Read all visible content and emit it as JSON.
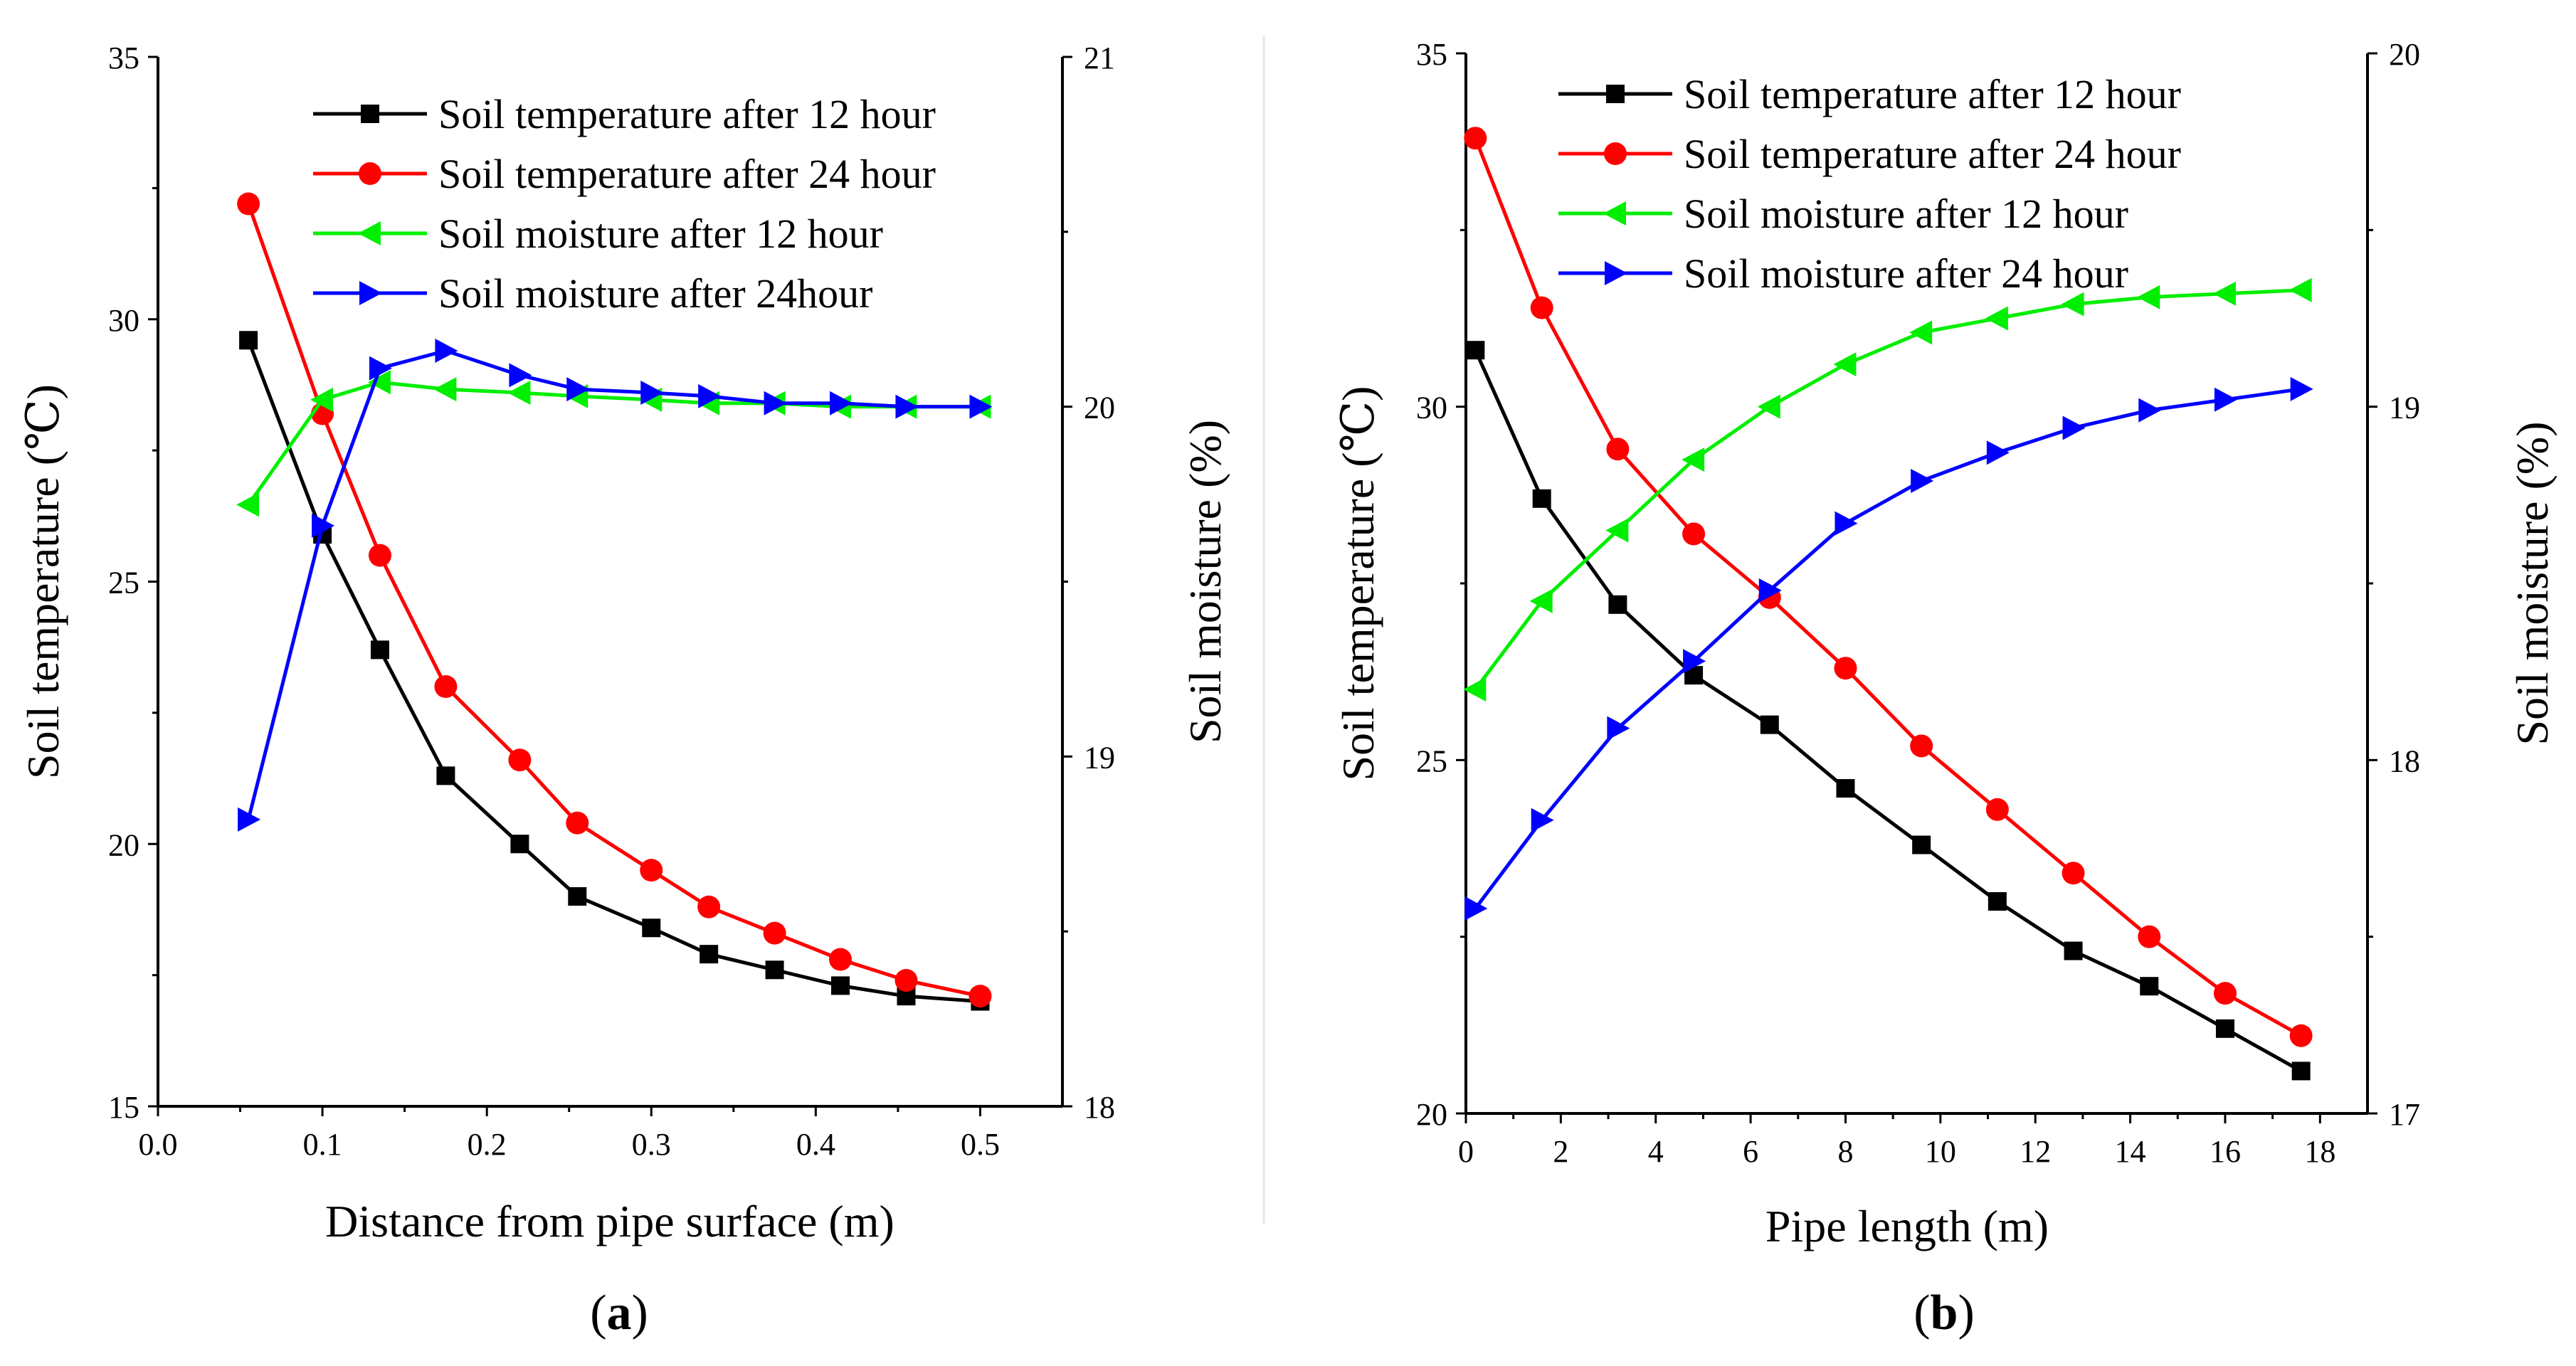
{
  "panels_caption": [
    {
      "open": "(",
      "letter": "a",
      "close": ")"
    },
    {
      "open": "(",
      "letter": "b",
      "close": ")"
    }
  ],
  "colors": {
    "temp12": "#000000",
    "temp24": "#ff0000",
    "moist12": "#00ee00",
    "moist24": "#0000ff"
  },
  "chart_data": [
    {
      "type": "line",
      "xlabel": "Distance from pipe surface (m)",
      "ylabel": "Soil temperature (℃)",
      "y2label": "Soil moisture (%)",
      "xlim": [
        0.0,
        0.55
      ],
      "ylim": [
        15,
        35
      ],
      "y2lim": [
        18,
        21
      ],
      "xticks": [
        "0.0",
        "0.1",
        "0.2",
        "0.3",
        "0.4",
        "0.5"
      ],
      "yticks": [
        "15",
        "20",
        "25",
        "30",
        "35"
      ],
      "y2ticks": [
        "18",
        "19",
        "20",
        "21"
      ],
      "legend_position": "top-right",
      "series": [
        {
          "name": "Soil temperature after 12 hour",
          "axis": "left",
          "marker": "square",
          "color": "#000000",
          "x": [
            0.055,
            0.1,
            0.135,
            0.175,
            0.22,
            0.255,
            0.3,
            0.335,
            0.375,
            0.415,
            0.455,
            0.5
          ],
          "y": [
            29.6,
            25.9,
            23.7,
            21.3,
            20.0,
            19.0,
            18.4,
            17.9,
            17.6,
            17.3,
            17.1,
            17.0
          ]
        },
        {
          "name": "Soil temperature after 24 hour",
          "axis": "left",
          "marker": "circle",
          "color": "#ff0000",
          "x": [
            0.055,
            0.1,
            0.135,
            0.175,
            0.22,
            0.255,
            0.3,
            0.335,
            0.375,
            0.415,
            0.455,
            0.5
          ],
          "y": [
            32.2,
            28.2,
            25.5,
            23.0,
            21.6,
            20.4,
            19.5,
            18.8,
            18.3,
            17.8,
            17.4,
            17.1
          ]
        },
        {
          "name": "Soil moisture after 12 hour",
          "axis": "right",
          "marker": "triangle-left",
          "color": "#00ee00",
          "x": [
            0.055,
            0.1,
            0.135,
            0.175,
            0.22,
            0.255,
            0.3,
            0.335,
            0.375,
            0.415,
            0.455,
            0.5
          ],
          "y": [
            19.72,
            20.02,
            20.07,
            20.05,
            20.04,
            20.03,
            20.02,
            20.01,
            20.01,
            20.0,
            20.0,
            20.0
          ]
        },
        {
          "name": "Soil moisture after 24hour",
          "axis": "right",
          "marker": "triangle-right",
          "color": "#0000ff",
          "x": [
            0.055,
            0.1,
            0.135,
            0.175,
            0.22,
            0.255,
            0.3,
            0.335,
            0.375,
            0.415,
            0.455,
            0.5
          ],
          "y": [
            18.82,
            19.66,
            20.11,
            20.16,
            20.09,
            20.05,
            20.04,
            20.03,
            20.01,
            20.01,
            20.0,
            20.0
          ]
        }
      ]
    },
    {
      "type": "line",
      "xlabel": "Pipe length (m)",
      "ylabel": "Soil temperature (℃)",
      "y2label": "Soil moisture (%)",
      "xlim": [
        0,
        19
      ],
      "ylim": [
        20,
        35
      ],
      "y2lim": [
        17,
        20
      ],
      "xticks": [
        "0",
        "2",
        "4",
        "6",
        "8",
        "10",
        "12",
        "14",
        "16",
        "18"
      ],
      "yticks": [
        "20",
        "25",
        "30",
        "35"
      ],
      "y2ticks": [
        "17",
        "18",
        "19",
        "20"
      ],
      "legend_position": "top-center",
      "series": [
        {
          "name": "Soil temperature after 12 hour",
          "axis": "left",
          "marker": "square",
          "color": "#000000",
          "x": [
            0.2,
            1.6,
            3.2,
            4.8,
            6.4,
            8.0,
            9.6,
            11.2,
            12.8,
            14.4,
            16.0,
            17.6
          ],
          "y": [
            30.8,
            28.7,
            27.2,
            26.2,
            25.5,
            24.6,
            23.8,
            23.0,
            22.3,
            21.8,
            21.2,
            20.6
          ]
        },
        {
          "name": "Soil temperature after 24 hour",
          "axis": "left",
          "marker": "circle",
          "color": "#ff0000",
          "x": [
            0.2,
            1.6,
            3.2,
            4.8,
            6.4,
            8.0,
            9.6,
            11.2,
            12.8,
            14.4,
            16.0,
            17.6
          ],
          "y": [
            33.8,
            31.4,
            29.4,
            28.2,
            27.3,
            26.3,
            25.2,
            24.3,
            23.4,
            22.5,
            21.7,
            21.1
          ]
        },
        {
          "name": "Soil moisture after 12 hour",
          "axis": "right",
          "marker": "triangle-left",
          "color": "#00ee00",
          "x": [
            0.2,
            1.6,
            3.2,
            4.8,
            6.4,
            8.0,
            9.6,
            11.2,
            12.8,
            14.4,
            16.0,
            17.6
          ],
          "y": [
            18.2,
            18.45,
            18.65,
            18.85,
            19.0,
            19.12,
            19.21,
            19.25,
            19.29,
            19.31,
            19.32,
            19.33
          ]
        },
        {
          "name": "Soil moisture after 24 hour",
          "axis": "right",
          "marker": "triangle-right",
          "color": "#0000ff",
          "x": [
            0.2,
            1.6,
            3.2,
            4.8,
            6.4,
            8.0,
            9.6,
            11.2,
            12.8,
            14.4,
            16.0,
            17.6
          ],
          "y": [
            17.58,
            17.83,
            18.09,
            18.28,
            18.48,
            18.67,
            18.79,
            18.87,
            18.94,
            18.99,
            19.02,
            19.05
          ]
        }
      ]
    }
  ]
}
